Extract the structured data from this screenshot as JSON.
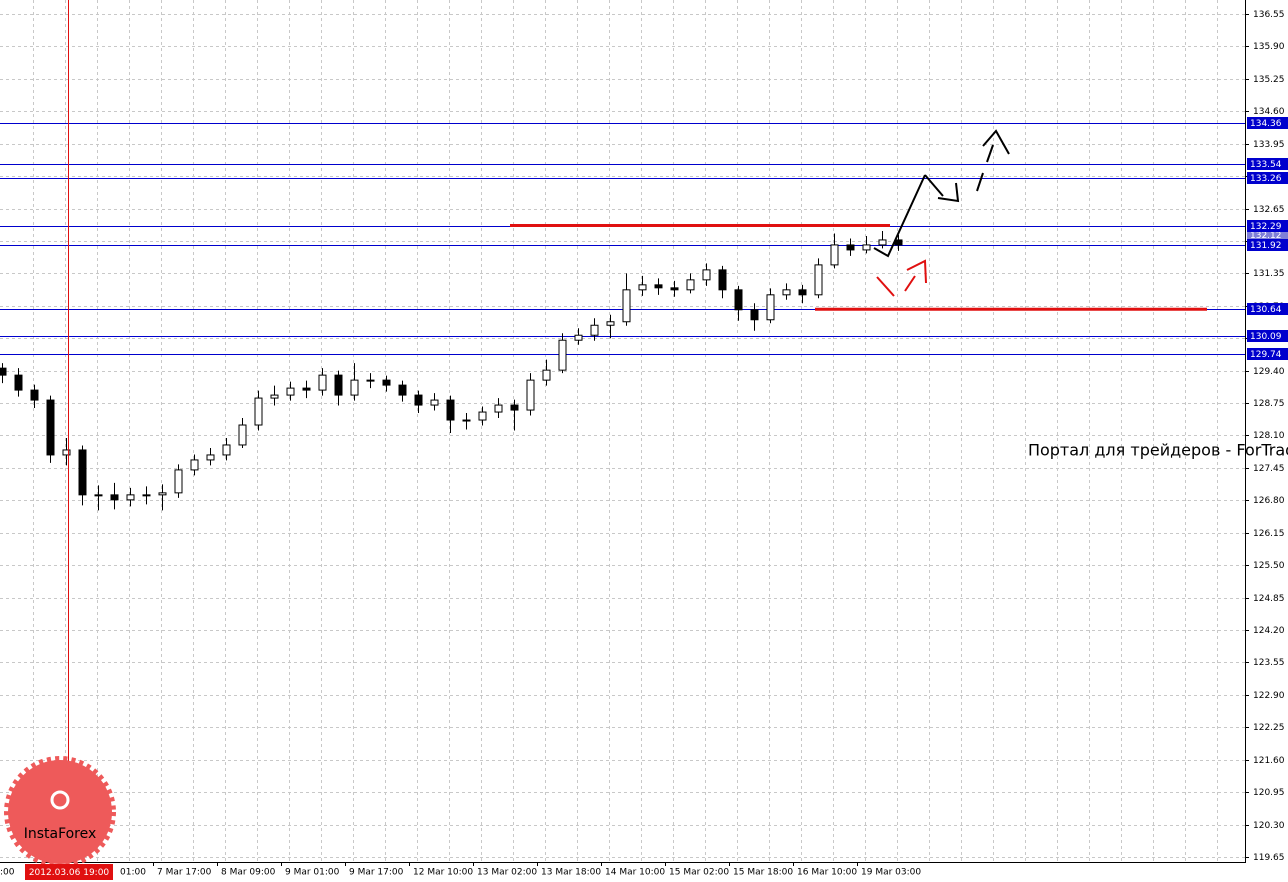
{
  "chart_data": {
    "type": "candlestick",
    "open": [
      129.45,
      129.31,
      129.01,
      128.81,
      127.71,
      127.81,
      126.91,
      126.91,
      126.81,
      126.91,
      126.91,
      126.95,
      127.41,
      127.61,
      127.71,
      127.91,
      128.31,
      128.85,
      128.91,
      129.05,
      129.01,
      129.31,
      128.91,
      129.21,
      129.21,
      129.11,
      128.91,
      128.71,
      128.81,
      128.41,
      128.41,
      128.57,
      128.71,
      128.61,
      129.21,
      129.41,
      130.01,
      130.11,
      130.31,
      130.38,
      131.02,
      131.12,
      131.06,
      131.02,
      131.22,
      131.42,
      131.02,
      130.62,
      130.42,
      130.92,
      131.02,
      130.92,
      131.52,
      131.92,
      131.82,
      131.92,
      132.02
    ],
    "high": [
      129.55,
      129.45,
      129.12,
      128.9,
      128.05,
      127.9,
      127.1,
      127.15,
      127.05,
      127.08,
      127.12,
      127.52,
      127.72,
      127.85,
      128.05,
      128.45,
      129.0,
      129.1,
      129.18,
      129.2,
      129.45,
      129.4,
      129.55,
      129.35,
      129.3,
      129.2,
      129.0,
      128.95,
      128.9,
      128.55,
      128.68,
      128.85,
      128.82,
      129.35,
      129.62,
      130.15,
      130.25,
      130.45,
      130.52,
      131.35,
      131.3,
      131.25,
      131.2,
      131.35,
      131.55,
      131.5,
      131.1,
      130.75,
      131.05,
      131.15,
      131.12,
      131.65,
      132.15,
      132.05,
      132.1,
      132.2,
      132.12
    ],
    "low": [
      129.15,
      128.88,
      128.65,
      127.55,
      127.5,
      126.7,
      126.6,
      126.62,
      126.68,
      126.72,
      126.6,
      126.85,
      127.3,
      127.5,
      127.6,
      127.85,
      128.2,
      128.7,
      128.8,
      128.85,
      128.9,
      128.7,
      128.8,
      129.05,
      128.98,
      128.78,
      128.55,
      128.6,
      128.15,
      128.22,
      128.3,
      128.45,
      128.2,
      128.5,
      129.1,
      129.35,
      129.92,
      130.0,
      130.05,
      130.3,
      130.9,
      130.92,
      130.88,
      130.95,
      131.1,
      130.85,
      130.4,
      130.2,
      130.35,
      130.82,
      130.75,
      130.85,
      131.45,
      131.7,
      131.75,
      131.85,
      131.8
    ],
    "close": [
      129.31,
      129.01,
      128.81,
      127.71,
      127.81,
      126.91,
      126.91,
      126.81,
      126.91,
      126.91,
      126.95,
      127.41,
      127.61,
      127.71,
      127.91,
      128.31,
      128.85,
      128.91,
      129.05,
      129.01,
      129.31,
      128.91,
      129.21,
      129.21,
      129.11,
      128.91,
      128.71,
      128.81,
      128.41,
      128.41,
      128.57,
      128.71,
      128.61,
      129.21,
      129.41,
      130.01,
      130.11,
      130.31,
      130.38,
      131.02,
      131.12,
      131.06,
      131.02,
      131.22,
      131.42,
      131.02,
      130.62,
      130.42,
      130.92,
      131.02,
      130.92,
      131.52,
      131.92,
      131.82,
      131.92,
      132.02,
      131.92
    ],
    "time_labels": [
      ":00",
      "01:00",
      "7 Mar 17:00",
      "8 Mar 09:00",
      "9 Mar 01:00",
      "9 Mar 17:00",
      "12 Mar 10:00",
      "13 Mar 02:00",
      "13 Mar 18:00",
      "14 Mar 10:00",
      "15 Mar 02:00",
      "15 Mar 18:00",
      "16 Mar 10:00",
      "19 Mar 03:00"
    ],
    "cursor_label": "2012.03.06 19:00",
    "ylim": [
      119.55,
      136.83
    ],
    "yticks": [
      136.55,
      {
        "value": 135.9,
        "label": "135.90"
      },
      135.25,
      {
        "value": 134.6,
        "label": "134.60"
      },
      133.95,
      {
        "value": 133.3,
        "label": "133.30"
      },
      132.65,
      {
        "value": 132.0,
        "label": "132.00"
      },
      131.35,
      {
        "value": 130.7,
        "label": "130.70"
      },
      130.05,
      {
        "value": 129.4,
        "label": "129.40"
      },
      128.75,
      {
        "value": 128.1,
        "label": "128.10"
      },
      127.45,
      {
        "value": 126.8,
        "label": "126.80"
      },
      126.15,
      {
        "value": 125.5,
        "label": "125.50"
      },
      124.85,
      {
        "value": 124.2,
        "label": "124.20"
      },
      123.55,
      {
        "value": 122.9,
        "label": "122.90"
      },
      122.25,
      {
        "value": 121.6,
        "label": "121.60"
      },
      120.95,
      {
        "value": 120.3,
        "label": "120.30"
      },
      119.65
    ],
    "price_marker": 132.12,
    "levels": [
      134.36,
      133.54,
      133.26,
      132.29,
      131.92,
      130.64,
      130.09,
      129.74
    ],
    "level_color": "#0000cd",
    "red_levels": [
      132.31,
      130.63
    ],
    "red_color": "#e01010",
    "grid": true
  },
  "watermark": "Портал для трейдеров - ForTrader.ru",
  "logo": "InstaForex"
}
